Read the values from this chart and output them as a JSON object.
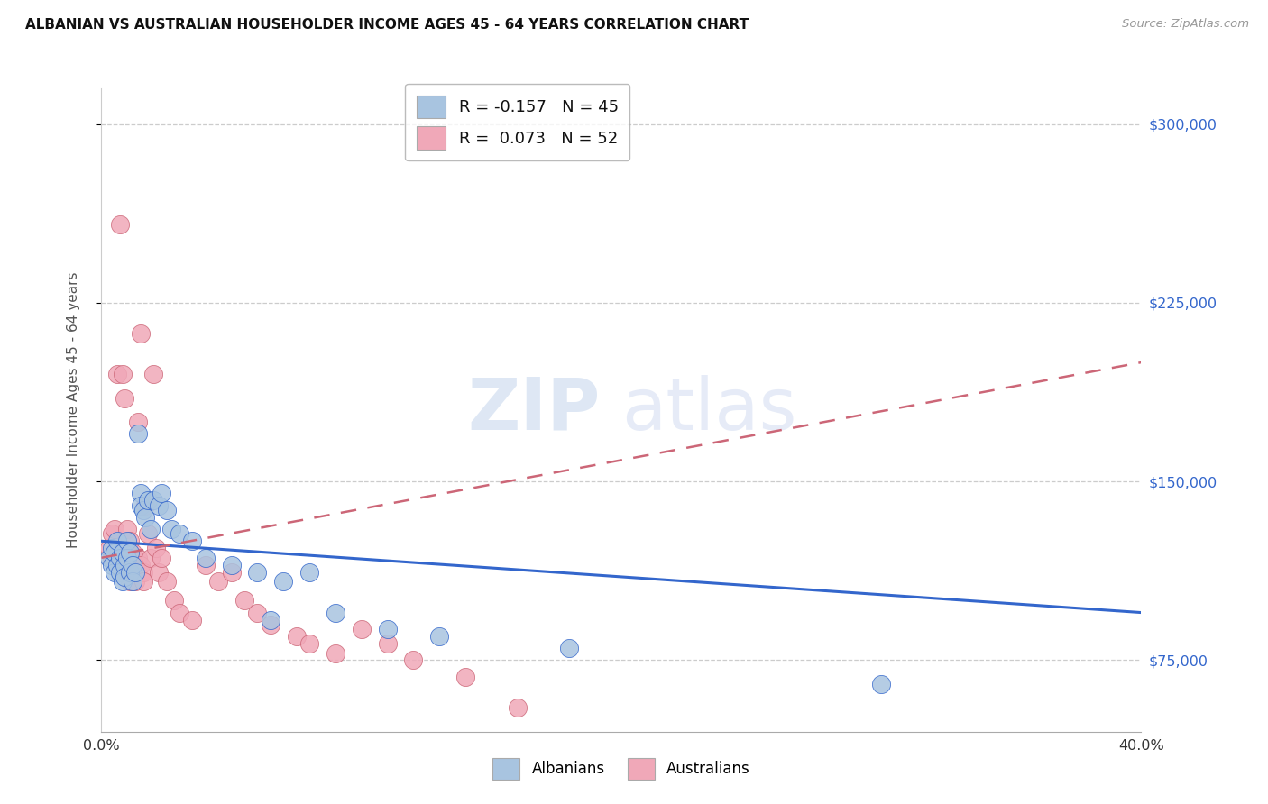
{
  "title": "ALBANIAN VS AUSTRALIAN HOUSEHOLDER INCOME AGES 45 - 64 YEARS CORRELATION CHART",
  "source": "Source: ZipAtlas.com",
  "ylabel": "Householder Income Ages 45 - 64 years",
  "xlim": [
    0.0,
    0.4
  ],
  "ylim": [
    45000,
    315000
  ],
  "yticks": [
    75000,
    150000,
    225000,
    300000
  ],
  "ytick_labels": [
    "$75,000",
    "$150,000",
    "$225,000",
    "$300,000"
  ],
  "xticks": [
    0.0,
    0.05,
    0.1,
    0.15,
    0.2,
    0.25,
    0.3,
    0.35,
    0.4
  ],
  "legend_blue_label": "R = -0.157   N = 45",
  "legend_pink_label": "R =  0.073   N = 52",
  "albanians_color": "#a8c4e0",
  "australians_color": "#f0a8b8",
  "blue_line_color": "#3366cc",
  "pink_line_color": "#cc6677",
  "blue_trend": [
    125000,
    95000
  ],
  "pink_trend": [
    118000,
    200000
  ],
  "albanians_x": [
    0.003,
    0.004,
    0.004,
    0.005,
    0.005,
    0.006,
    0.006,
    0.007,
    0.007,
    0.008,
    0.008,
    0.009,
    0.009,
    0.01,
    0.01,
    0.011,
    0.011,
    0.012,
    0.012,
    0.013,
    0.014,
    0.015,
    0.015,
    0.016,
    0.017,
    0.018,
    0.019,
    0.02,
    0.022,
    0.023,
    0.025,
    0.027,
    0.03,
    0.035,
    0.04,
    0.05,
    0.06,
    0.065,
    0.07,
    0.08,
    0.09,
    0.11,
    0.13,
    0.18,
    0.3
  ],
  "albanians_y": [
    118000,
    122000,
    115000,
    120000,
    112000,
    125000,
    115000,
    118000,
    112000,
    120000,
    108000,
    115000,
    110000,
    125000,
    118000,
    120000,
    112000,
    115000,
    108000,
    112000,
    170000,
    145000,
    140000,
    138000,
    135000,
    142000,
    130000,
    142000,
    140000,
    145000,
    138000,
    130000,
    128000,
    125000,
    118000,
    115000,
    112000,
    92000,
    108000,
    112000,
    95000,
    88000,
    85000,
    80000,
    65000
  ],
  "australians_x": [
    0.003,
    0.004,
    0.004,
    0.005,
    0.005,
    0.006,
    0.006,
    0.007,
    0.007,
    0.008,
    0.008,
    0.009,
    0.009,
    0.01,
    0.01,
    0.011,
    0.011,
    0.012,
    0.012,
    0.013,
    0.013,
    0.014,
    0.014,
    0.015,
    0.015,
    0.016,
    0.016,
    0.017,
    0.018,
    0.019,
    0.02,
    0.021,
    0.022,
    0.023,
    0.025,
    0.028,
    0.03,
    0.035,
    0.04,
    0.045,
    0.05,
    0.055,
    0.06,
    0.065,
    0.075,
    0.08,
    0.09,
    0.1,
    0.11,
    0.12,
    0.14,
    0.16
  ],
  "australians_y": [
    122000,
    118000,
    128000,
    130000,
    120000,
    195000,
    115000,
    258000,
    120000,
    195000,
    112000,
    185000,
    118000,
    130000,
    115000,
    125000,
    108000,
    120000,
    112000,
    115000,
    108000,
    175000,
    118000,
    212000,
    115000,
    112000,
    108000,
    140000,
    128000,
    118000,
    195000,
    122000,
    112000,
    118000,
    108000,
    100000,
    95000,
    92000,
    115000,
    108000,
    112000,
    100000,
    95000,
    90000,
    85000,
    82000,
    78000,
    88000,
    82000,
    75000,
    68000,
    55000
  ]
}
